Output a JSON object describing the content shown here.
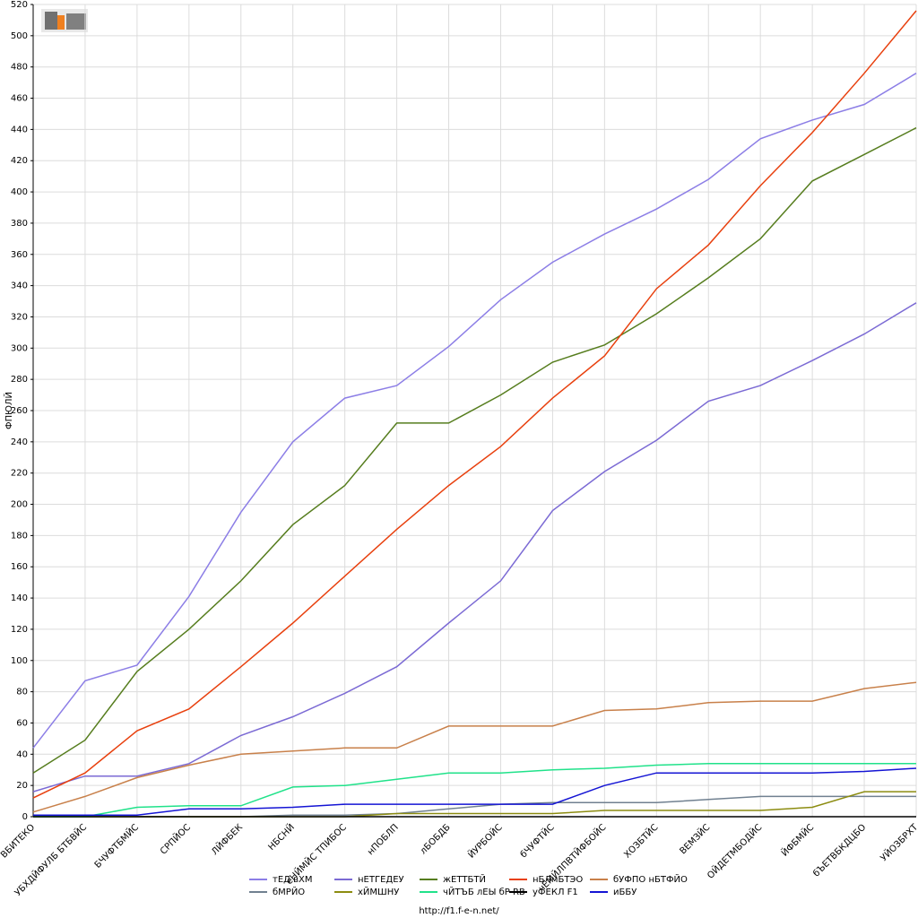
{
  "chart_data": {
    "type": "line",
    "ylabel": "ФПЮЛЙ",
    "footer": "http://f1.f-e-n.net/",
    "categories": [
      "ВБИТЕКО",
      "УБХДЙФУЛБ БТБВЙС",
      "БЧУФТБМЙС",
      "СРПЙОС",
      "ЛЙФБЕК",
      "НБСНЙ",
      "еНЙМЙС ТПИБОС",
      "нПОБЛП",
      "лБОБДБ",
      "ЙУРБОЙС",
      "бЧУФТЙС",
      "чЕМЙЛПВТЙФБОЙС",
      "ХОЗБТЙС",
      "ВЕМЗЙС",
      "ОЙДЕТМБОДЙС",
      "ЙФБМЙС",
      "бЪЕТВБКДЦБО",
      "УЙОЗБРХТ"
    ],
    "ylim": [
      0,
      520
    ],
    "yticks": [
      0,
      20,
      40,
      60,
      80,
      100,
      120,
      140,
      160,
      180,
      200,
      220,
      240,
      260,
      280,
      300,
      320,
      340,
      360,
      380,
      400,
      420,
      440,
      460,
      480,
      500,
      520
    ],
    "grid": true,
    "series": [
      {
        "name": "тЕД вХМ",
        "color": "#8c7ee6",
        "values": [
          44,
          87,
          97,
          141,
          195,
          240,
          268,
          276,
          301,
          331,
          355,
          373,
          389,
          408,
          434,
          446,
          456,
          476
        ]
      },
      {
        "name": "нЕТГЕДЕУ",
        "color": "#7b6ad4",
        "values": [
          16,
          26,
          26,
          34,
          52,
          64,
          79,
          96,
          124,
          151,
          196,
          221,
          241,
          266,
          276,
          292,
          309,
          329
        ]
      },
      {
        "name": "жЕТТБТЙ",
        "color": "#567d1e",
        "values": [
          28,
          49,
          93,
          120,
          151,
          187,
          212,
          252,
          252,
          270,
          291,
          302,
          322,
          345,
          370,
          407,
          424,
          441
        ]
      },
      {
        "name": "нБЛмБТЭО",
        "color": "#e8400e",
        "values": [
          12,
          28,
          55,
          69,
          96,
          124,
          154,
          184,
          212,
          237,
          268,
          295,
          338,
          366,
          404,
          438,
          476,
          516
        ]
      },
      {
        "name": "бУФПО нБТФЙО",
        "color": "#c8804a",
        "values": [
          3,
          13,
          25,
          33,
          40,
          42,
          44,
          44,
          58,
          58,
          58,
          68,
          69,
          73,
          74,
          74,
          82,
          86
        ]
      },
      {
        "name": "бМРЙО",
        "color": "#708090",
        "values": [
          0,
          0,
          0,
          0,
          0,
          1,
          1,
          2,
          5,
          8,
          9,
          9,
          9,
          11,
          13,
          13,
          13,
          13
        ]
      },
      {
        "name": "хЙМШНУ",
        "color": "#8c8c10",
        "values": [
          0,
          0,
          0,
          0,
          0,
          0,
          0,
          2,
          2,
          2,
          2,
          4,
          4,
          4,
          4,
          6,
          16,
          16
        ]
      },
      {
        "name": "чЙТЪБ лЕЫ бР RB",
        "color": "#20e28a",
        "values": [
          0,
          0,
          6,
          7,
          7,
          19,
          20,
          24,
          28,
          28,
          30,
          31,
          33,
          34,
          34,
          34,
          34,
          34
        ]
      },
      {
        "name": "уФЕКЛ F1",
        "color": "#000000",
        "values": [
          0,
          0,
          0,
          0,
          0,
          0,
          0,
          0,
          0,
          0,
          0,
          0,
          0,
          0,
          0,
          0,
          0,
          0
        ]
      },
      {
        "name": "иББУ",
        "color": "#1414d4",
        "values": [
          1,
          1,
          1,
          5,
          5,
          6,
          8,
          8,
          8,
          8,
          8,
          20,
          28,
          28,
          28,
          28,
          29,
          31
        ]
      }
    ]
  }
}
